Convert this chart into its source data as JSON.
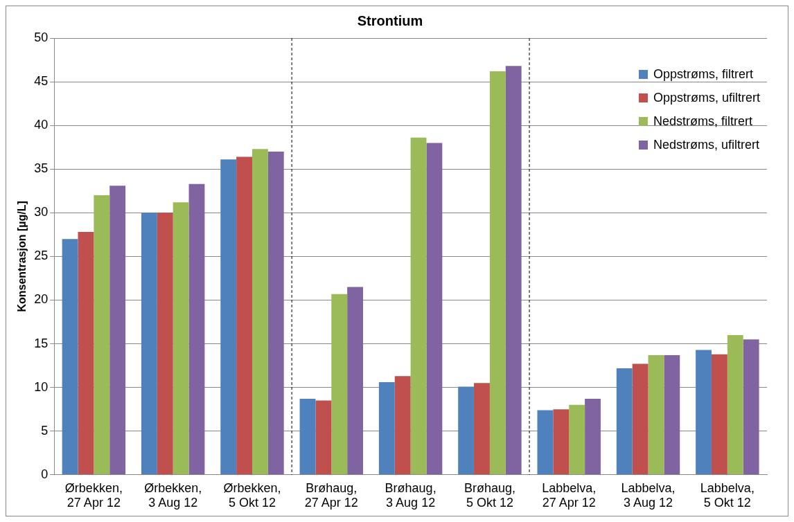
{
  "chart_data": {
    "type": "bar",
    "title": "Strontium",
    "ylabel": "Konsentrasjon [µg/L]",
    "categories": [
      "Ørbekken, 27 Apr 12",
      "Ørbekken, 3 Aug 12",
      "Ørbekken, 5 Okt 12",
      "Brøhaug, 27 Apr 12",
      "Brøhaug, 3 Aug 12",
      "Brøhaug, 5 Okt 12",
      "Labbelva, 27 Apr 12",
      "Labbelva, 3 Aug 12",
      "Labbelva, 5 Okt 12"
    ],
    "series": [
      {
        "name": "Oppstrøms, filtrert",
        "color": "#4f81bd",
        "values": [
          27.0,
          30.0,
          36.1,
          8.7,
          10.6,
          10.1,
          7.4,
          12.2,
          14.3
        ]
      },
      {
        "name": "Oppstrøms, ufiltrert",
        "color": "#c0504d",
        "values": [
          27.8,
          30.0,
          36.4,
          8.5,
          11.3,
          10.5,
          7.5,
          12.7,
          13.8
        ]
      },
      {
        "name": "Nedstrøms, filtrert",
        "color": "#9bbb59",
        "values": [
          32.0,
          31.2,
          37.3,
          20.7,
          38.6,
          46.2,
          8.0,
          13.7,
          16.0
        ]
      },
      {
        "name": "Nedstrøms, ufiltrert",
        "color": "#8064a2",
        "values": [
          33.1,
          33.3,
          37.0,
          21.5,
          38.0,
          46.8,
          8.7,
          13.7,
          15.5
        ]
      }
    ],
    "ylim": [
      0,
      50
    ],
    "yticks": [
      0,
      5,
      10,
      15,
      20,
      25,
      30,
      35,
      40,
      45,
      50
    ],
    "grid": "y",
    "legend": "top right"
  }
}
